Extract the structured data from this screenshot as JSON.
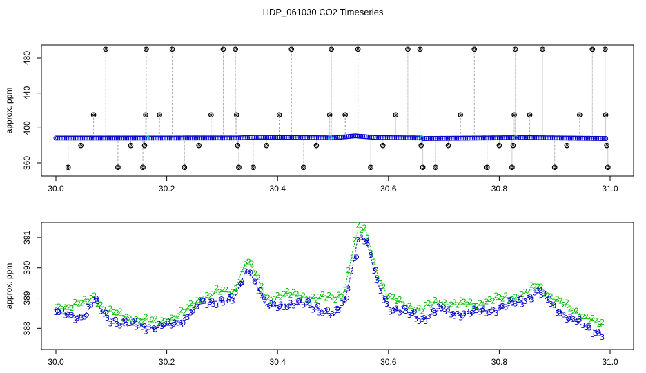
{
  "title": "HDP_061030  CO2 Timeseries",
  "colors": {
    "series_blue": "#0000cc",
    "series_green": "#00bb00",
    "series_cyan": "#00c8c8",
    "spike_gray": "#999999",
    "marker_black": "#000000"
  },
  "chart_data": [
    {
      "type": "scatter",
      "title": "HDP_061030  CO2 Timeseries",
      "xlabel": "",
      "ylabel": "approx. ppm",
      "xlim": [
        30.0,
        31.0
      ],
      "ylim": [
        345,
        495
      ],
      "x_ticks": [
        30.0,
        30.2,
        30.4,
        30.6,
        30.8,
        31.0
      ],
      "x_tick_labels": [
        "30.0",
        "30.2",
        "30.4",
        "30.6",
        "30.8",
        "31.0"
      ],
      "y_ticks": [
        360,
        400,
        440,
        480
      ],
      "y_tick_labels": [
        "360",
        "400",
        "440",
        "480"
      ],
      "grid": false,
      "series": [
        {
          "marker": "circle",
          "color": "blue",
          "baseline": [
            [
              30.0,
              388.5
            ],
            [
              30.33,
              388.6
            ],
            [
              30.36,
              389.5
            ],
            [
              30.5,
              388.7
            ],
            [
              30.54,
              391.0
            ],
            [
              30.58,
              389.0
            ],
            [
              30.66,
              388.6
            ],
            [
              30.66,
              388.0
            ],
            [
              30.85,
              389.0
            ],
            [
              30.99,
              388.0
            ]
          ]
        },
        {
          "marker": "circle",
          "color": "black",
          "outliers": [
            [
              30.022,
              355
            ],
            [
              30.045,
              380
            ],
            [
              30.068,
              415
            ],
            [
              30.09,
              490
            ],
            [
              30.112,
              355
            ],
            [
              30.135,
              380
            ],
            [
              30.157,
              355
            ],
            [
              30.16,
              380
            ],
            [
              30.162,
              415
            ],
            [
              30.163,
              490
            ],
            [
              30.187,
              415
            ],
            [
              30.21,
              490
            ],
            [
              30.232,
              355
            ],
            [
              30.258,
              380
            ],
            [
              30.28,
              415
            ],
            [
              30.302,
              490
            ],
            [
              30.324,
              490
            ],
            [
              30.326,
              415
            ],
            [
              30.328,
              380
            ],
            [
              30.33,
              355
            ],
            [
              30.356,
              355
            ],
            [
              30.38,
              380
            ],
            [
              30.403,
              415
            ],
            [
              30.425,
              490
            ],
            [
              30.447,
              355
            ],
            [
              30.47,
              380
            ],
            [
              30.494,
              415
            ],
            [
              30.497,
              490
            ],
            [
              30.522,
              415
            ],
            [
              30.545,
              490
            ],
            [
              30.568,
              355
            ],
            [
              30.59,
              380
            ],
            [
              30.613,
              415
            ],
            [
              30.635,
              490
            ],
            [
              30.657,
              490
            ],
            [
              30.659,
              380
            ],
            [
              30.662,
              355
            ],
            [
              30.685,
              355
            ],
            [
              30.708,
              380
            ],
            [
              30.73,
              415
            ],
            [
              30.755,
              490
            ],
            [
              30.778,
              355
            ],
            [
              30.8,
              380
            ],
            [
              30.823,
              355
            ],
            [
              30.825,
              380
            ],
            [
              30.827,
              415
            ],
            [
              30.829,
              490
            ],
            [
              30.855,
              415
            ],
            [
              30.878,
              490
            ],
            [
              30.9,
              355
            ],
            [
              30.922,
              380
            ],
            [
              30.945,
              415
            ],
            [
              30.968,
              490
            ],
            [
              30.991,
              490
            ],
            [
              30.992,
              415
            ],
            [
              30.994,
              380
            ],
            [
              30.996,
              355
            ]
          ]
        }
      ]
    },
    {
      "type": "scatter",
      "xlabel": "",
      "ylabel": "approx. ppm",
      "xlim": [
        30.0,
        31.0
      ],
      "ylim": [
        387.3,
        391.5
      ],
      "x_ticks": [
        30.0,
        30.2,
        30.4,
        30.6,
        30.8,
        31.0
      ],
      "x_tick_labels": [
        "30.0",
        "30.2",
        "30.4",
        "30.6",
        "30.8",
        "31.0"
      ],
      "y_ticks": [
        388,
        389,
        390,
        391
      ],
      "y_tick_labels": [
        "388",
        "389",
        "390",
        "391"
      ],
      "grid": false,
      "series": [
        {
          "marker": "2",
          "color": "green",
          "points": [
            [
              30.0,
              388.7
            ],
            [
              30.05,
              388.8
            ],
            [
              30.07,
              389.1
            ],
            [
              30.09,
              388.6
            ],
            [
              30.12,
              388.4
            ],
            [
              30.15,
              388.3
            ],
            [
              30.18,
              388.2
            ],
            [
              30.2,
              388.3
            ],
            [
              30.23,
              388.5
            ],
            [
              30.26,
              389.0
            ],
            [
              30.29,
              389.2
            ],
            [
              30.32,
              389.2
            ],
            [
              30.345,
              390.3
            ],
            [
              30.36,
              389.8
            ],
            [
              30.38,
              389.0
            ],
            [
              30.41,
              389.1
            ],
            [
              30.44,
              389.1
            ],
            [
              30.47,
              389.0
            ],
            [
              30.5,
              389.0
            ],
            [
              30.52,
              389.2
            ],
            [
              30.535,
              390.5
            ],
            [
              30.545,
              391.3
            ],
            [
              30.56,
              391.2
            ],
            [
              30.58,
              389.8
            ],
            [
              30.6,
              389.0
            ],
            [
              30.63,
              388.8
            ],
            [
              30.66,
              388.6
            ],
            [
              30.69,
              388.9
            ],
            [
              30.72,
              388.8
            ],
            [
              30.75,
              388.8
            ],
            [
              30.78,
              388.9
            ],
            [
              30.81,
              389.0
            ],
            [
              30.84,
              389.1
            ],
            [
              30.87,
              389.4
            ],
            [
              30.9,
              389.0
            ],
            [
              30.93,
              388.6
            ],
            [
              30.96,
              388.4
            ],
            [
              30.99,
              388.0
            ]
          ]
        },
        {
          "marker": "3",
          "color": "blue",
          "points": [
            [
              30.0,
              388.5
            ],
            [
              30.05,
              388.4
            ],
            [
              30.07,
              388.9
            ],
            [
              30.09,
              388.4
            ],
            [
              30.12,
              388.1
            ],
            [
              30.15,
              388.1
            ],
            [
              30.18,
              388.0
            ],
            [
              30.2,
              388.1
            ],
            [
              30.23,
              388.3
            ],
            [
              30.26,
              388.8
            ],
            [
              30.29,
              388.9
            ],
            [
              30.32,
              388.9
            ],
            [
              30.345,
              390.0
            ],
            [
              30.36,
              389.5
            ],
            [
              30.38,
              388.7
            ],
            [
              30.41,
              388.8
            ],
            [
              30.44,
              388.8
            ],
            [
              30.47,
              388.7
            ],
            [
              30.5,
              388.4
            ],
            [
              30.52,
              388.8
            ],
            [
              30.535,
              390.0
            ],
            [
              30.545,
              391.0
            ],
            [
              30.56,
              390.9
            ],
            [
              30.58,
              389.5
            ],
            [
              30.6,
              388.7
            ],
            [
              30.63,
              388.5
            ],
            [
              30.66,
              388.3
            ],
            [
              30.69,
              388.6
            ],
            [
              30.72,
              388.5
            ],
            [
              30.75,
              388.5
            ],
            [
              30.78,
              388.6
            ],
            [
              30.81,
              388.7
            ],
            [
              30.84,
              388.9
            ],
            [
              30.87,
              389.2
            ],
            [
              30.9,
              388.7
            ],
            [
              30.93,
              388.3
            ],
            [
              30.96,
              388.0
            ],
            [
              30.99,
              387.8
            ]
          ]
        }
      ]
    }
  ]
}
